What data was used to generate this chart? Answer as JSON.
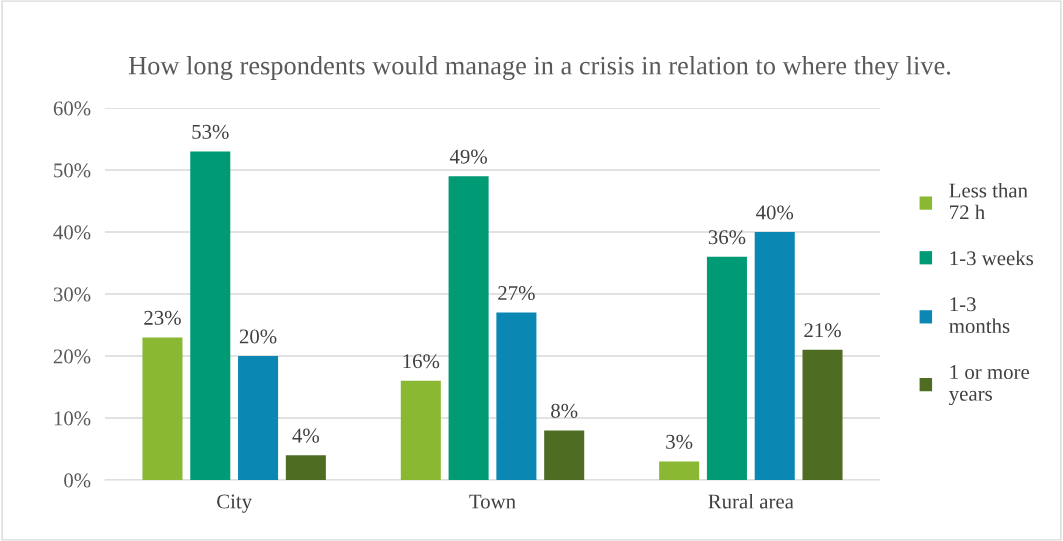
{
  "chart_data": {
    "type": "bar",
    "title": "How long respondents would manage in a crisis in relation to where they live.",
    "categories": [
      "City",
      "Town",
      "Rural area"
    ],
    "series": [
      {
        "name": "Less than 72 h",
        "color": "#8ab833",
        "values": [
          23,
          16,
          3
        ],
        "value_labels": [
          "23%",
          "16%",
          "3%"
        ]
      },
      {
        "name": "1-3 weeks",
        "color": "#009a75",
        "values": [
          53,
          49,
          36
        ],
        "value_labels": [
          "53%",
          "49%",
          "36%"
        ]
      },
      {
        "name": "1-3 months",
        "color": "#0b87b3",
        "values": [
          20,
          27,
          40
        ],
        "value_labels": [
          "20%",
          "27%",
          "40%"
        ]
      },
      {
        "name": "1 or more years",
        "color": "#4f6d22",
        "values": [
          4,
          8,
          21
        ],
        "value_labels": [
          "4%",
          "8%",
          "21%"
        ]
      }
    ],
    "ylim": [
      0,
      60
    ],
    "yticks": [
      {
        "value": 0,
        "label": "0%"
      },
      {
        "value": 10,
        "label": "10%"
      },
      {
        "value": 20,
        "label": "20%"
      },
      {
        "value": 30,
        "label": "30%"
      },
      {
        "value": 40,
        "label": "40%"
      },
      {
        "value": 50,
        "label": "50%"
      },
      {
        "value": 60,
        "label": "60%"
      }
    ],
    "grid": "y",
    "legend": "right"
  }
}
